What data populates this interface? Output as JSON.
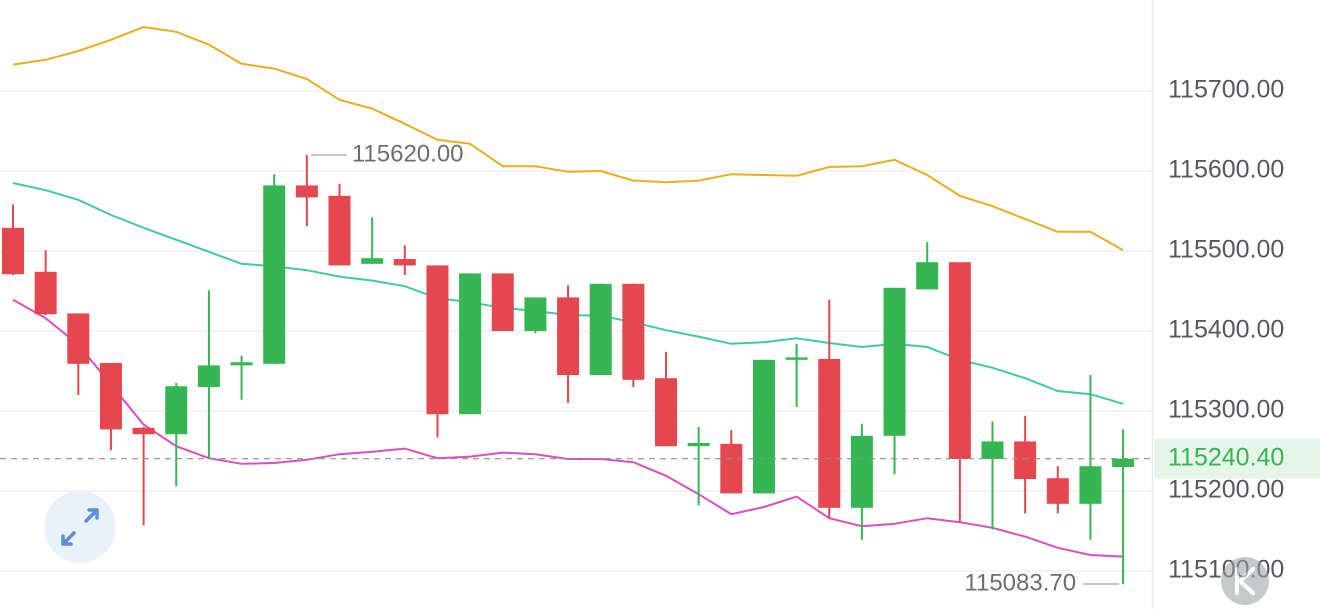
{
  "chart_data": {
    "type": "candlestick",
    "up_color": "#35b653",
    "down_color": "#e5474f",
    "ylim": [
      115052.5,
      115813.75
    ],
    "yticks": [
      {
        "value": 115100,
        "label": "115100.00"
      },
      {
        "value": 115200,
        "label": "115200.00"
      },
      {
        "value": 115300,
        "label": "115300.00"
      },
      {
        "value": 115400,
        "label": "115400.00"
      },
      {
        "value": 115500,
        "label": "115500.00"
      },
      {
        "value": 115600,
        "label": "115600.00"
      },
      {
        "value": 115700,
        "label": "115700.00"
      }
    ],
    "grid": true,
    "candles": {
      "open": [
        115529,
        115474,
        115422,
        115360,
        115279,
        115271,
        115330,
        115357,
        115359,
        115582,
        115569,
        115484,
        115490,
        115482,
        115296,
        115472,
        115400,
        115442,
        115345,
        115459,
        115341,
        115256,
        115259,
        115197,
        115364,
        115365,
        115179,
        115269,
        115452,
        115486,
        115240,
        115262,
        115216,
        115184,
        115230
      ],
      "high": [
        115558,
        115501,
        115422,
        115360,
        115280,
        115335,
        115451,
        115369,
        115596,
        115620,
        115584,
        115542,
        115507,
        115482,
        115472,
        115472,
        115442,
        115457,
        115459,
        115459,
        115374,
        115280,
        115276,
        115364,
        115384,
        115439,
        115284,
        115454,
        115511,
        115486,
        115287,
        115294,
        115231,
        115345,
        115277
      ],
      "low": [
        115470,
        115420,
        115320,
        115251,
        115157,
        115206,
        115241,
        115314,
        115359,
        115531,
        115482,
        115484,
        115470,
        115267,
        115296,
        115400,
        115397,
        115310,
        115345,
        115330,
        115256,
        115182,
        115197,
        115197,
        115305,
        115166,
        115139,
        115221,
        115452,
        115161,
        115152,
        115172,
        115172,
        115139,
        115083.7
      ],
      "close": [
        115471,
        115421,
        115359,
        115277,
        115271,
        115331,
        115357,
        115361,
        115582,
        115567,
        115482,
        115491,
        115482,
        115296,
        115472,
        115400,
        115442,
        115345,
        115459,
        115339,
        115256,
        115260,
        115197,
        115364,
        115367,
        115179,
        115269,
        115454,
        115486,
        115240,
        115262,
        115215,
        115184,
        115231,
        115240.4
      ]
    },
    "series": [
      {
        "color": "#e9ae1c",
        "values": [
          115733,
          115739,
          115750,
          115764,
          115780,
          115774,
          115758,
          115734,
          115728,
          115715,
          115689,
          115678,
          115659,
          115639,
          115634,
          115606,
          115606,
          115599,
          115600,
          115588,
          115586,
          115588,
          115596,
          115595,
          115594,
          115605,
          115606,
          115614,
          115595,
          115569,
          115556,
          115540,
          115524,
          115524,
          115501
        ]
      },
      {
        "color": "#3ccaa7",
        "values": [
          115585,
          115576,
          115564,
          115545,
          115529,
          115514,
          115499,
          115484,
          115481,
          115476,
          115468,
          115463,
          115456,
          115441,
          115436,
          115429,
          115425,
          115420,
          115419,
          115411,
          115401,
          115393,
          115384,
          115386,
          115391,
          115385,
          115380,
          115384,
          115380,
          115364,
          115354,
          115341,
          115325,
          115321,
          115309
        ]
      },
      {
        "color": "#d94fbf",
        "values": [
          115439,
          115416,
          115383,
          115333,
          115283,
          115256,
          115241,
          115234,
          115235,
          115239,
          115246,
          115249,
          115253,
          115241,
          115243,
          115248,
          115246,
          115240,
          115240,
          115236,
          115219,
          115196,
          115171,
          115180,
          115193,
          115166,
          115156,
          115159,
          115166,
          115161,
          115154,
          115143,
          115129,
          115120,
          115118
        ]
      }
    ],
    "high_label": {
      "value": 115620,
      "label": "115620.00"
    },
    "low_label": {
      "value": 115083.7,
      "label": "115083.70"
    },
    "current_price": {
      "value": 115240.4,
      "label": "115240.40"
    }
  }
}
